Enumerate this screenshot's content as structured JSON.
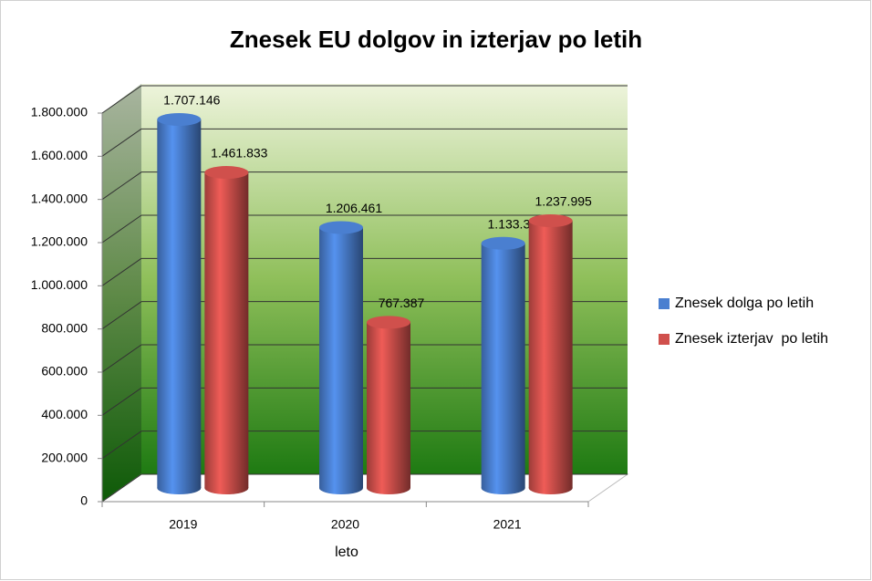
{
  "chart_data": {
    "type": "bar",
    "title": "Znesek EU dolgov in izterjav po letih",
    "x_label": "leto",
    "categories": [
      "2019",
      "2020",
      "2021"
    ],
    "series": [
      {
        "name": "Znesek dolga po letih",
        "color": "#4a7fd0",
        "values": [
          1707146,
          1206461,
          1133381
        ],
        "value_labels": [
          "1.707.146",
          "1.206.461",
          "1.133.381"
        ]
      },
      {
        "name": "Znesek izterjav  po letih",
        "color": "#d0504c",
        "values": [
          1461833,
          767387,
          1237995
        ],
        "value_labels": [
          "1.461.833",
          "767.387",
          "1.237.995"
        ]
      }
    ],
    "ylim": [
      0,
      1800000
    ],
    "yticks": [
      0,
      {
        "value": 200000,
        "label": "200.000"
      },
      {
        "value": 400000,
        "label": "400.000"
      },
      {
        "value": 600000,
        "label": "600.000"
      },
      {
        "value": 800000,
        "label": "800.000"
      },
      {
        "value": 1000000,
        "label": "1.000.000"
      },
      {
        "value": 1200000,
        "label": "1.200.000"
      },
      {
        "value": 1400000,
        "label": "1.400.000"
      },
      {
        "value": 1600000,
        "label": "1.600.000"
      },
      {
        "value": 1800000,
        "label": "1.800.000"
      }
    ],
    "grid": true,
    "legend": "right"
  }
}
